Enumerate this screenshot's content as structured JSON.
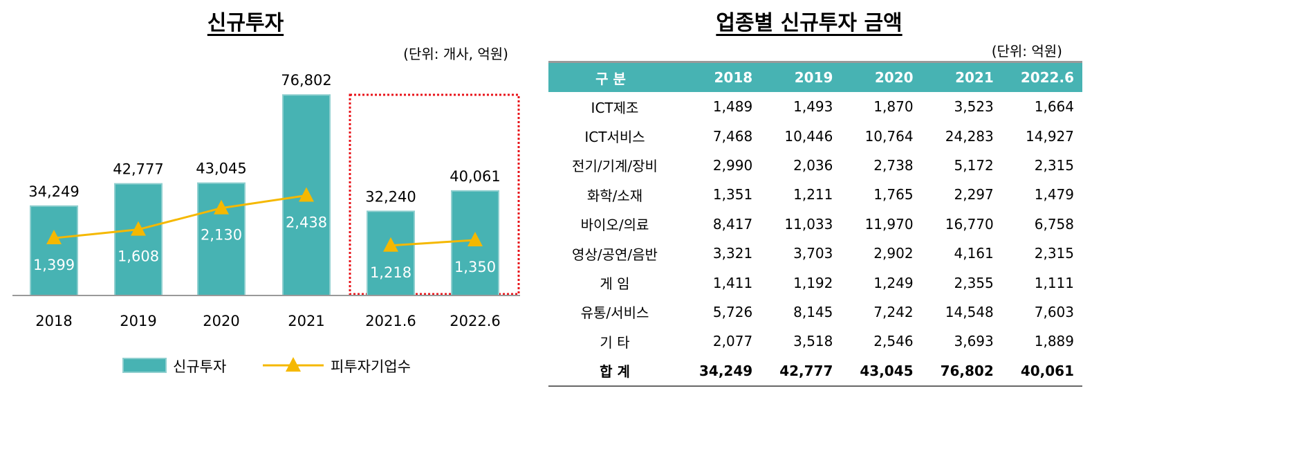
{
  "chart_data": [
    {
      "type": "bar+line",
      "title": "신규투자",
      "unit_note": "(단위: 개사, 억원)",
      "categories": [
        "2018",
        "2019",
        "2020",
        "2021",
        "2021.6",
        "2022.6"
      ],
      "series": [
        {
          "name": "신규투자",
          "type": "bar",
          "axis": "primary",
          "values": [
            34249,
            42777,
            43045,
            76802,
            32240,
            40061
          ],
          "labels": [
            "34,249",
            "42,777",
            "43,045",
            "76,802",
            "32,240",
            "40,061"
          ]
        },
        {
          "name": "피투자기업수",
          "type": "line",
          "axis": "secondary",
          "values": [
            1399,
            1608,
            2130,
            2438,
            1218,
            1350
          ],
          "labels": [
            "1,399",
            "1,608",
            "2,130",
            "2,438",
            "1,218",
            "1,350"
          ]
        }
      ],
      "ylim": [
        0,
        110000
      ],
      "y2lim": [
        0,
        7000
      ],
      "grid": false,
      "legend": "bottom",
      "highlight_box": [
        "2021.6",
        "2022.6"
      ],
      "colors": {
        "bar": "#47b3b3",
        "line": "#f5b800",
        "highlight": "#e8141b"
      }
    },
    {
      "type": "table",
      "title": "업종별 신규투자 금액",
      "unit_note": "(단위: 억원)",
      "columns": [
        "구 분",
        "2018",
        "2019",
        "2020",
        "2021",
        "2022.6"
      ],
      "rows": [
        [
          "ICT제조",
          "1,489",
          "1,493",
          "1,870",
          "3,523",
          "1,664"
        ],
        [
          "ICT서비스",
          "7,468",
          "10,446",
          "10,764",
          "24,283",
          "14,927"
        ],
        [
          "전기/기계/장비",
          "2,990",
          "2,036",
          "2,738",
          "5,172",
          "2,315"
        ],
        [
          "화학/소재",
          "1,351",
          "1,211",
          "1,765",
          "2,297",
          "1,479"
        ],
        [
          "바이오/의료",
          "8,417",
          "11,033",
          "11,970",
          "16,770",
          "6,758"
        ],
        [
          "영상/공연/음반",
          "3,321",
          "3,703",
          "2,902",
          "4,161",
          "2,315"
        ],
        [
          "게 임",
          "1,411",
          "1,192",
          "1,249",
          "2,355",
          "1,111"
        ],
        [
          "유통/서비스",
          "5,726",
          "8,145",
          "7,242",
          "14,548",
          "7,603"
        ],
        [
          "기 타",
          "2,077",
          "3,518",
          "2,546",
          "3,693",
          "1,889"
        ],
        [
          "합 계",
          "34,249",
          "42,777",
          "43,045",
          "76,802",
          "40,061"
        ]
      ],
      "colors": {
        "header": "#47b3b3"
      }
    }
  ]
}
